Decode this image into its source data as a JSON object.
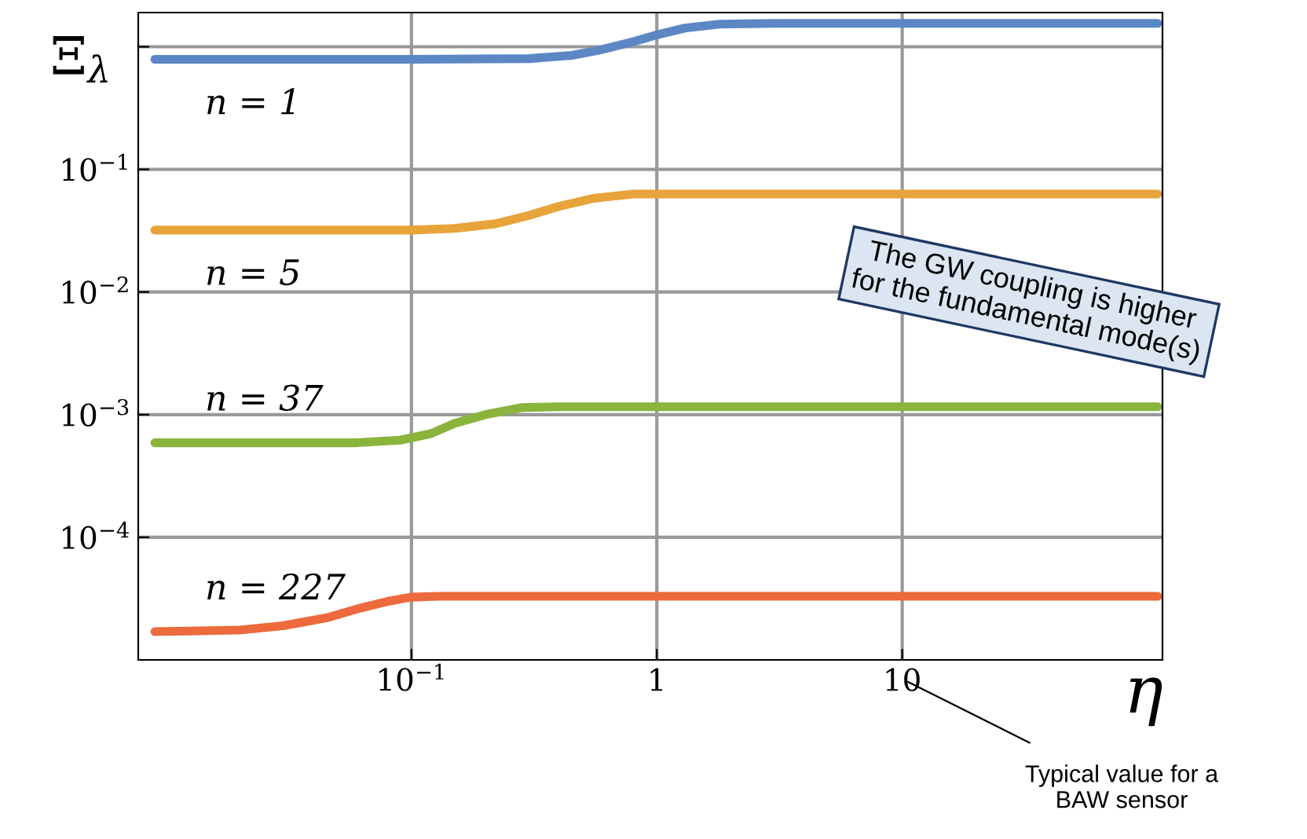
{
  "chart_data": {
    "type": "line",
    "ylabel": "Ξ$_{λ}$",
    "xlabel": "η",
    "log": "xy",
    "grid": true,
    "line_style": "solid",
    "marker": "none",
    "xlim": [
      0.0077,
      115
    ],
    "ylim": [
      1e-05,
      1.9
    ],
    "xticks": [
      {
        "value": 0.1,
        "label": "10$^{−1}$"
      },
      1,
      10
    ],
    "yticks": [
      {
        "value": 0.0001,
        "label": "10$^{−4}$"
      },
      {
        "value": 0.001,
        "label": "10$^{−3}$"
      },
      {
        "value": 0.01,
        "label": "10$^{−2}$"
      },
      {
        "value": 0.1,
        "label": "10$^{−1}$"
      },
      {
        "value": 1,
        "label": null
      }
    ],
    "series": [
      {
        "name": "n = 1",
        "color": "#5b88c4",
        "x": [
          0.009,
          0.1,
          0.3,
          0.45,
          0.6,
          0.8,
          1.0,
          1.3,
          1.8,
          3,
          110
        ],
        "values": [
          0.79,
          0.79,
          0.8,
          0.85,
          0.95,
          1.1,
          1.25,
          1.42,
          1.53,
          1.55,
          1.55
        ]
      },
      {
        "name": "n = 5",
        "color": "#e8a33a",
        "x": [
          0.009,
          0.1,
          0.15,
          0.22,
          0.3,
          0.4,
          0.55,
          0.8,
          1.2,
          110
        ],
        "values": [
          0.032,
          0.032,
          0.033,
          0.036,
          0.042,
          0.05,
          0.058,
          0.063,
          0.063,
          0.063
        ]
      },
      {
        "name": "n = 37",
        "color": "#8ab43c",
        "x": [
          0.009,
          0.06,
          0.09,
          0.12,
          0.15,
          0.2,
          0.28,
          0.4,
          110
        ],
        "values": [
          0.00059,
          0.00059,
          0.00062,
          0.0007,
          0.00085,
          0.001,
          0.00114,
          0.00116,
          0.00116
        ]
      },
      {
        "name": "n = 227",
        "color": "#ec6a3c",
        "x": [
          0.009,
          0.02,
          0.03,
          0.045,
          0.06,
          0.08,
          0.1,
          0.13,
          110
        ],
        "values": [
          1.7e-05,
          1.75e-05,
          1.9e-05,
          2.2e-05,
          2.6e-05,
          3e-05,
          3.25e-05,
          3.3e-05,
          3.3e-05
        ]
      }
    ],
    "annotations": [
      "The GW coupling is higher\nfor the fundamental mode(s)",
      "Typical value for a\nBAW sensor"
    ]
  }
}
